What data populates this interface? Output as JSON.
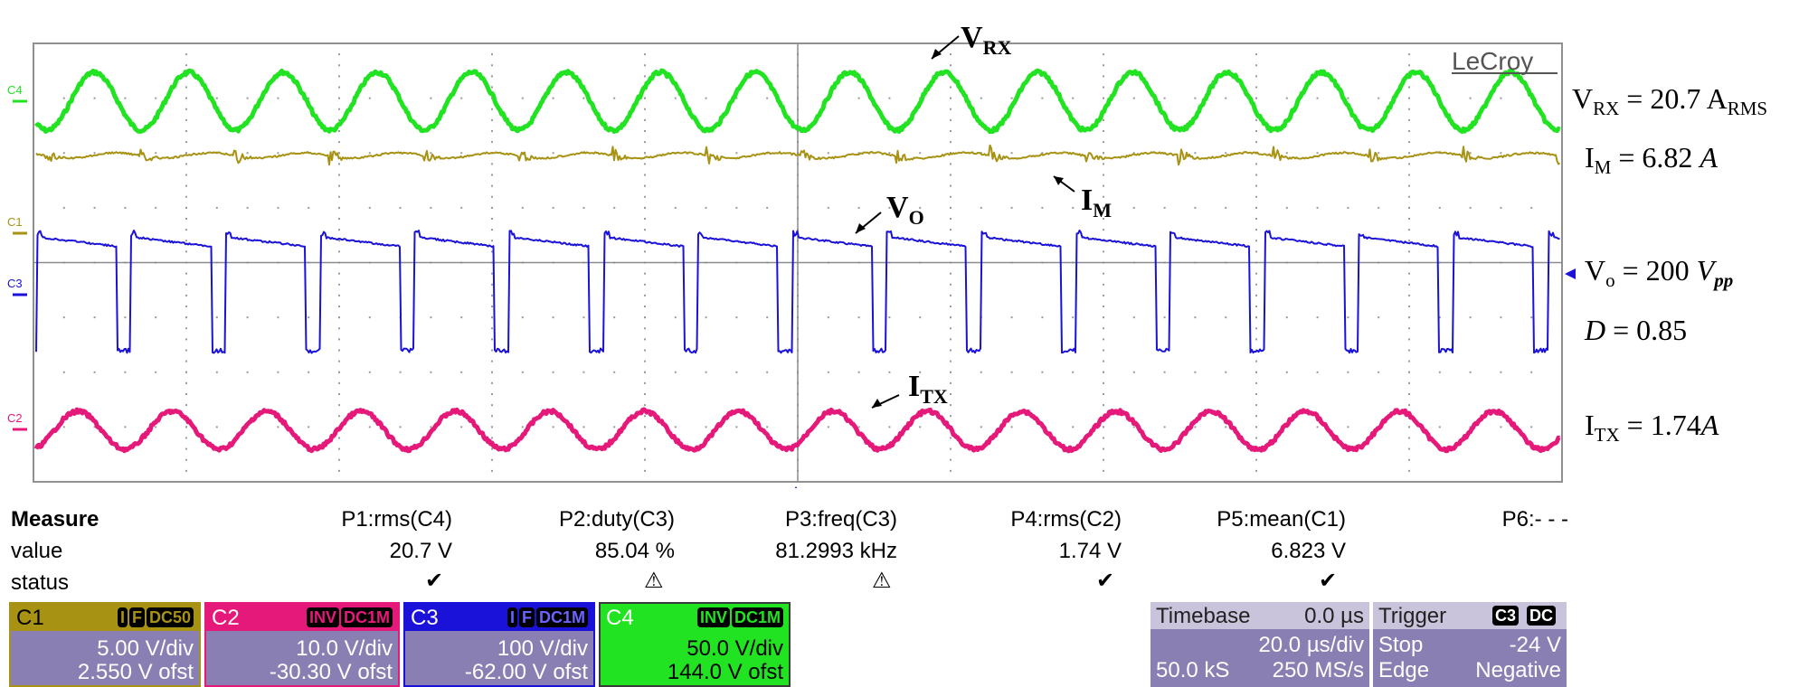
{
  "brand": "LeCroy",
  "channel_markers": {
    "c4": "C4",
    "c1": "C1",
    "c3": "C3",
    "c2": "C2"
  },
  "annotations": {
    "vrx": {
      "label": "V",
      "sub": "RX"
    },
    "im": {
      "label": "I",
      "sub": "M"
    },
    "vo": {
      "label": "V",
      "sub": "O"
    },
    "itx": {
      "label": "I",
      "sub": "TX"
    }
  },
  "side_values": {
    "vrx": {
      "sym": "V",
      "sub": "RX",
      "rest": " = 20.7 A",
      "unit_sub": "RMS"
    },
    "im": {
      "sym": "I",
      "sub": "M",
      "rest": " = 6.82 ",
      "unit_italic": "A"
    },
    "vo": {
      "sym": "V",
      "sub": "o",
      "rest": " = 200 ",
      "unit_italic": "V",
      "unit_sub": "pp"
    },
    "d": {
      "sym": "D",
      "rest": " = 0.85"
    },
    "itx": {
      "sym": "I",
      "sub": "TX",
      "rest": " = 1.74",
      "unit_italic": "A"
    }
  },
  "measure": {
    "row_labels": {
      "measure": "Measure",
      "value": "value",
      "status": "status"
    },
    "params": [
      {
        "name": "P1:rms(C4)",
        "value": "20.7 V",
        "status": "check"
      },
      {
        "name": "P2:duty(C3)",
        "value": "85.04 %",
        "status": "warning"
      },
      {
        "name": "P3:freq(C3)",
        "value": "81.2993 kHz",
        "status": "warning"
      },
      {
        "name": "P4:rms(C2)",
        "value": "1.74 V",
        "status": "check"
      },
      {
        "name": "P5:mean(C1)",
        "value": "6.823 V",
        "status": "check"
      },
      {
        "name": "P6:- - -",
        "value": "",
        "status": ""
      }
    ]
  },
  "channels": [
    {
      "name": "C1",
      "tags": [
        "I",
        "F",
        "DC50"
      ],
      "vdiv": "5.00 V/div",
      "offset": "2.550 V ofst",
      "color": "#a89214"
    },
    {
      "name": "C2",
      "tags": [
        "INV",
        "DC1M"
      ],
      "vdiv": "10.0 V/div",
      "offset": "-30.30 V ofst",
      "color": "#e5197a"
    },
    {
      "name": "C3",
      "tags": [
        "I",
        "F",
        "DC1M"
      ],
      "vdiv": "100 V/div",
      "offset": "-62.00 V ofst",
      "color": "#1a12d8"
    },
    {
      "name": "C4",
      "tags": [
        "INV",
        "DC1M"
      ],
      "vdiv": "50.0 V/div",
      "offset": "144.0 V ofst",
      "color": "#21e321"
    }
  ],
  "timebase": {
    "label": "Timebase",
    "delay": "0.0 µs",
    "tdiv": "20.0 µs/div",
    "samples": "50.0 kS",
    "rate": "250 MS/s"
  },
  "trigger": {
    "label": "Trigger",
    "tags": [
      "C3",
      "DC"
    ],
    "mode": "Stop",
    "level": "-24 V",
    "type": "Edge",
    "slope": "Negative"
  },
  "colors": {
    "c4": "#21e321",
    "c1": "#a89214",
    "c3": "#1a12d8",
    "c2": "#e5197a",
    "grid": "#9a9a9a",
    "panel": "#8a7fb3"
  }
}
